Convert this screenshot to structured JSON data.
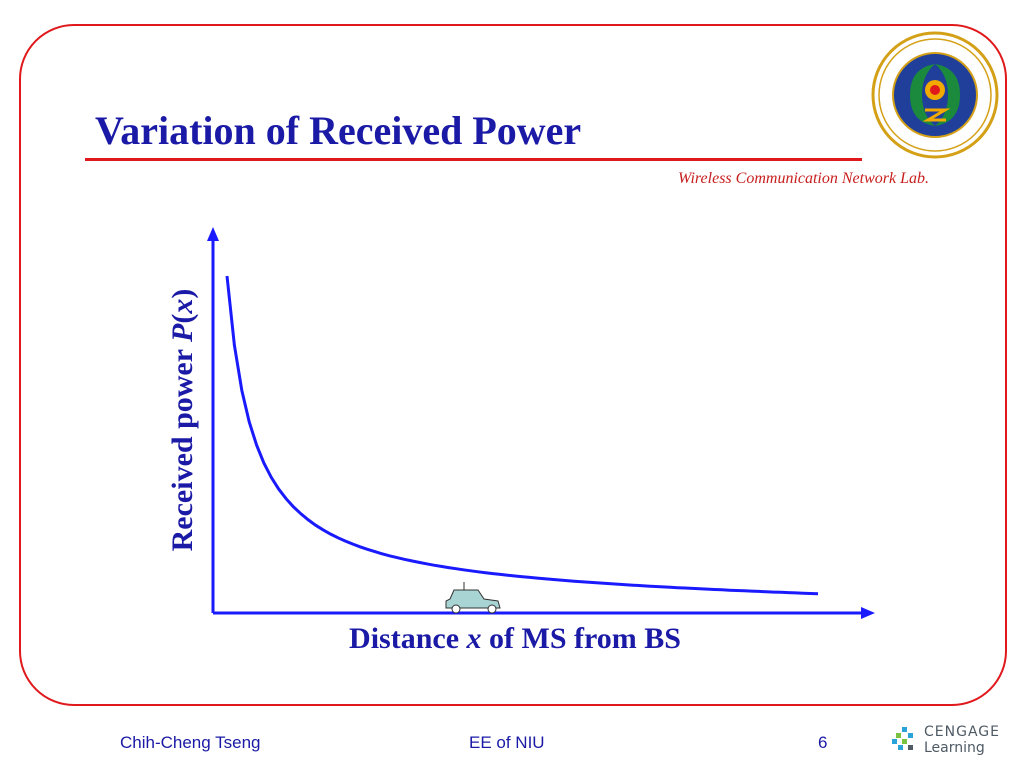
{
  "slide": {
    "title": "Variation of Received Power",
    "lab": "Wireless Communication Network Lab."
  },
  "chart": {
    "xlabel_prefix": "Distance ",
    "xlabel_var": "x",
    "xlabel_suffix": " of MS from BS",
    "ylabel_prefix": "Received power ",
    "ylabel_var1": "P",
    "ylabel_open": "(",
    "ylabel_var2": "x",
    "ylabel_close": ")",
    "line_color": "#1a1aff",
    "axis_color": "#1a1aff"
  },
  "footer": {
    "author": "Chih-Cheng Tseng",
    "course": "EE of NIU",
    "page": "6"
  },
  "publisher": {
    "line1": "CENGAGE",
    "line2": "Learning"
  },
  "colors": {
    "title": "#1a1aa6",
    "accent_red": "#e0191d",
    "lab_text": "#c81e1e"
  }
}
